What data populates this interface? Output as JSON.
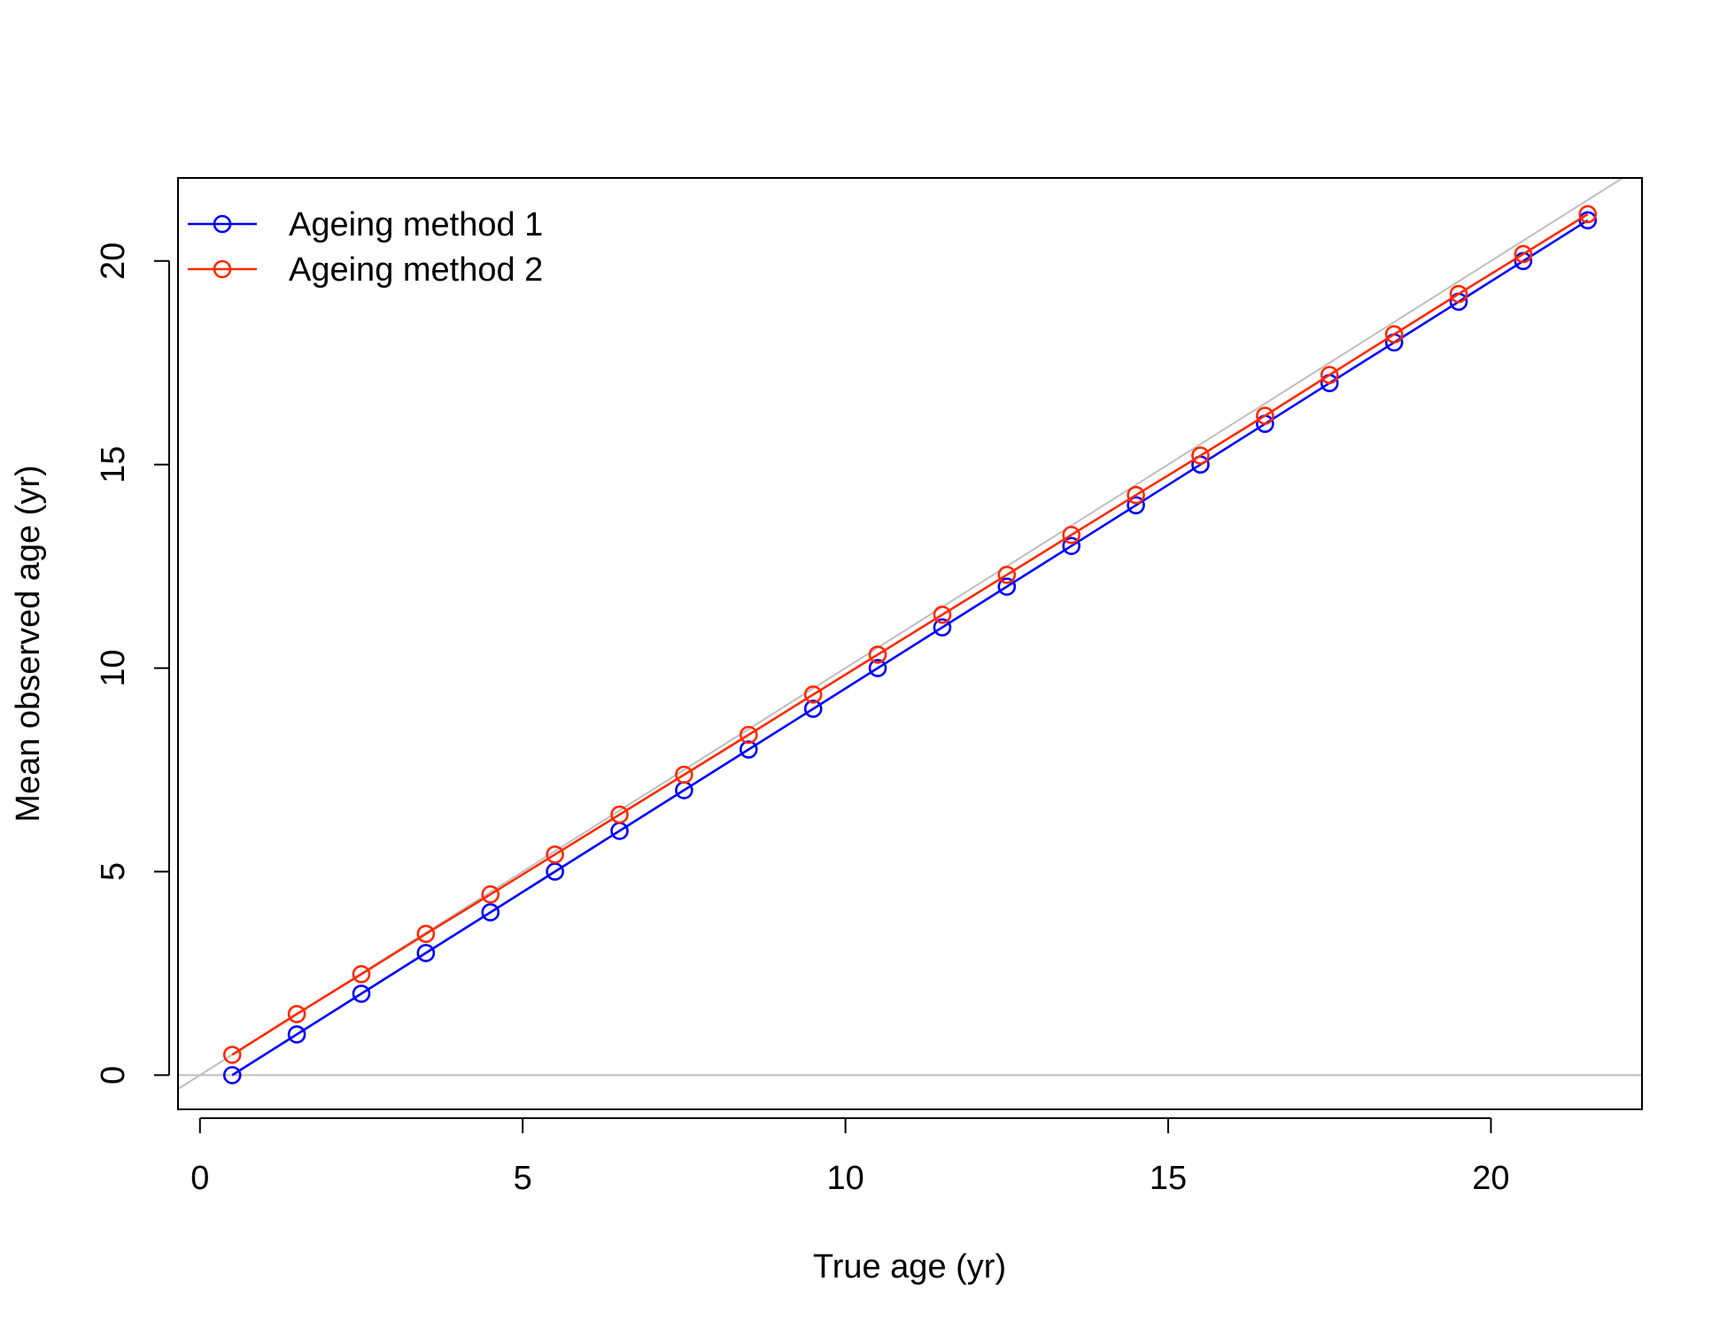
{
  "chart_data": {
    "type": "line",
    "title": "",
    "xlabel": "True age (yr)",
    "ylabel": "Mean observed age (yr)",
    "xlim": [
      -0.34,
      22.34
    ],
    "ylim": [
      -0.84,
      22.04
    ],
    "x_ticks": [
      "0",
      "5",
      "10",
      "15",
      "20"
    ],
    "y_ticks": [
      "0",
      "5",
      "10",
      "15",
      "20"
    ],
    "grid": false,
    "legend_position": "top-left",
    "x": [
      0.5,
      1.5,
      2.5,
      3.5,
      4.5,
      5.5,
      6.5,
      7.5,
      8.5,
      9.5,
      10.5,
      11.5,
      12.5,
      13.5,
      14.5,
      15.5,
      16.5,
      17.5,
      18.5,
      19.5,
      20.5,
      21.5
    ],
    "series": [
      {
        "name": "Ageing method 1",
        "color": "#0000ff",
        "marker": "open-circle",
        "values": [
          0,
          1,
          2,
          3,
          4,
          5,
          6,
          7,
          8,
          9,
          10,
          11,
          12,
          13,
          14,
          15,
          16,
          17,
          18,
          19,
          20,
          21
        ]
      },
      {
        "name": "Ageing method 2",
        "color": "#ff2a00",
        "marker": "open-circle",
        "values": [
          0.5,
          1.5,
          2.48,
          3.47,
          4.44,
          5.42,
          6.4,
          7.38,
          8.36,
          9.35,
          10.33,
          11.31,
          12.29,
          13.27,
          14.25,
          15.22,
          16.2,
          17.2,
          18.2,
          19.19,
          20.17,
          21.15
        ]
      }
    ],
    "reference_lines": [
      {
        "kind": "diagonal",
        "equation": "y = x",
        "color": "#bebebe"
      },
      {
        "kind": "horizontal",
        "y": 0,
        "color": "#bebebe"
      }
    ]
  }
}
